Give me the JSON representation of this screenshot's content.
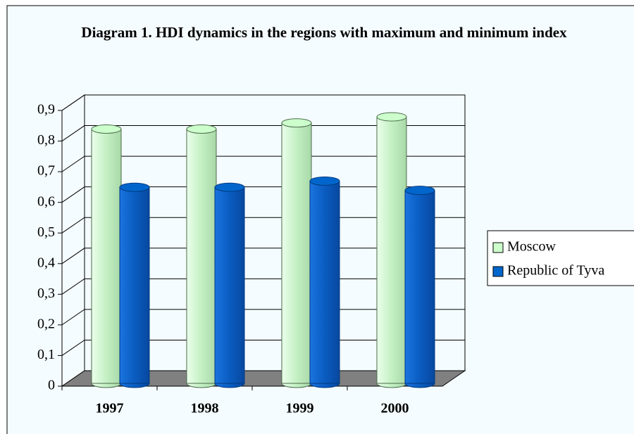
{
  "chart_data": {
    "type": "bar",
    "style": "3d-cylinder",
    "title": "Diagram 1. HDI dynamics in the regions with maximum and minimum index",
    "categories": [
      "1997",
      "1998",
      "1999",
      "2000"
    ],
    "series": [
      {
        "name": "Moscow",
        "color": "#ccffcc",
        "values": [
          0.83,
          0.83,
          0.85,
          0.87
        ]
      },
      {
        "name": "Republic of Tyva",
        "color": "#0066cc",
        "values": [
          0.64,
          0.64,
          0.66,
          0.63
        ]
      }
    ],
    "ylim": [
      0,
      0.9
    ],
    "yticks": [
      0,
      {
        "value": 0.1,
        "label": "0,1"
      },
      {
        "value": 0.2,
        "label": "0,2"
      },
      {
        "value": 0.3,
        "label": "0,3"
      },
      {
        "value": 0.4,
        "label": "0,4"
      },
      {
        "value": 0.5,
        "label": "0,5"
      },
      {
        "value": 0.6,
        "label": "0,6"
      },
      {
        "value": 0.7,
        "label": "0,7"
      },
      {
        "value": 0.8,
        "label": "0,8"
      },
      {
        "value": 0.9,
        "label": "0,9"
      }
    ],
    "grid": true,
    "legend": "right"
  }
}
